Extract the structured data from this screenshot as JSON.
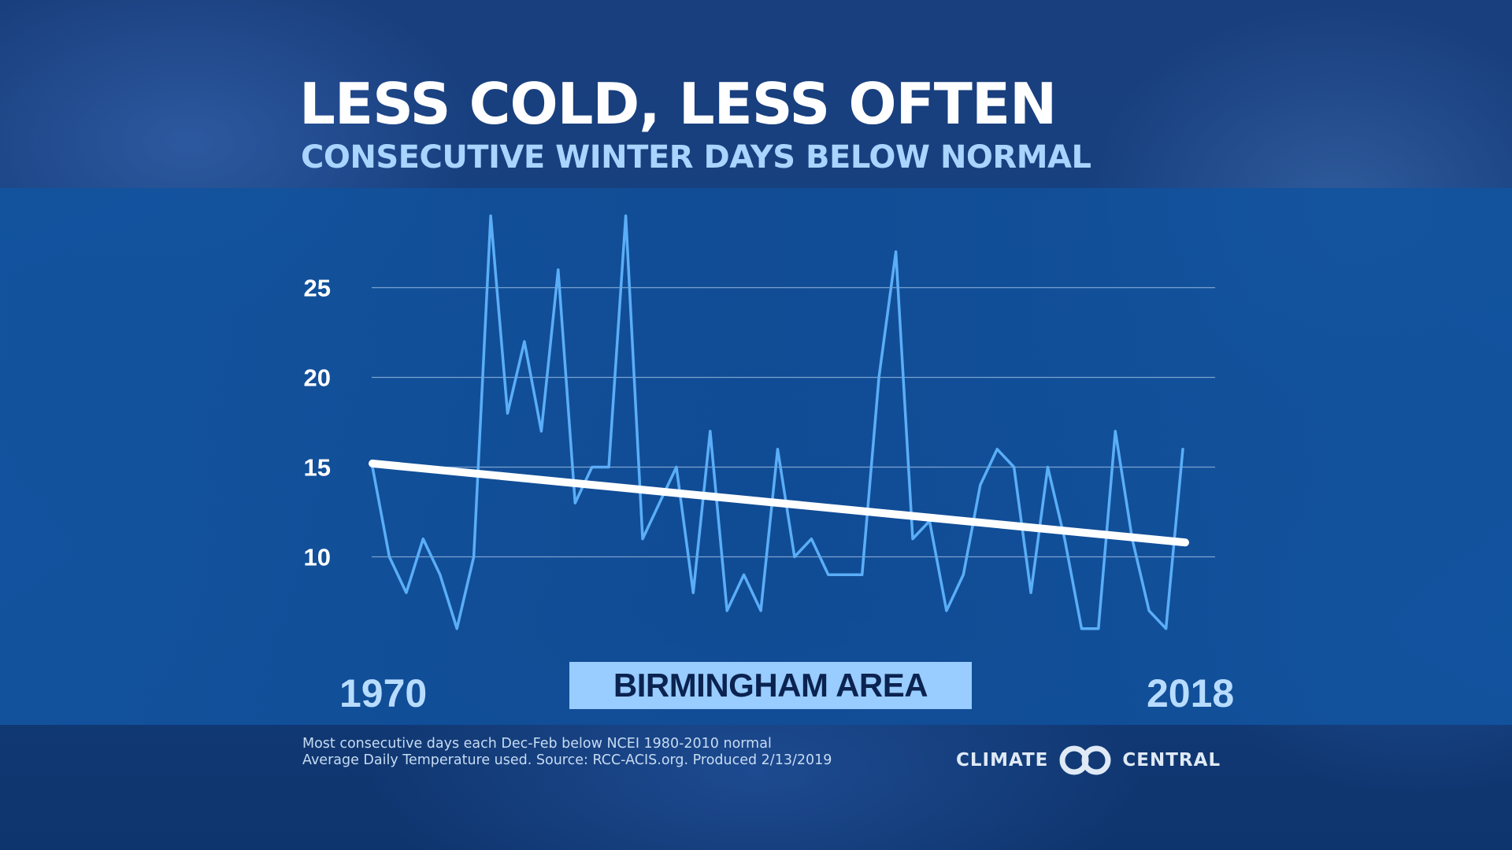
{
  "title": "LESS COLD, LESS OFTEN",
  "subtitle": "CONSECUTIVE WINTER DAYS BELOW NORMAL",
  "location_label": "BIRMINGHAM AREA",
  "year_start_label": "1970",
  "year_end_label": "2018",
  "footnote_line1": "Most consecutive days each Dec-Feb below NCEI 1980-2010 normal",
  "footnote_line2": "Average Daily Temperature used. Source: RCC-ACIS.org. Produced 2/13/2019",
  "logo": {
    "left_text": "CLIMATE",
    "right_text": "CENTRAL",
    "icon": "climate-central-logo-icon"
  },
  "colors": {
    "series_line": "#5aaef7",
    "trend_line": "#ffffff",
    "gridline": "#9fc0e3",
    "location_box": "#99ccff"
  },
  "chart_data": {
    "type": "line",
    "title": "CONSECUTIVE WINTER DAYS BELOW NORMAL",
    "xlabel": "",
    "ylabel": "",
    "x": [
      1970,
      1971,
      1972,
      1973,
      1974,
      1975,
      1976,
      1977,
      1978,
      1979,
      1980,
      1981,
      1982,
      1983,
      1984,
      1985,
      1986,
      1987,
      1988,
      1989,
      1990,
      1991,
      1992,
      1993,
      1994,
      1995,
      1996,
      1997,
      1998,
      1999,
      2000,
      2001,
      2002,
      2003,
      2004,
      2005,
      2006,
      2007,
      2008,
      2009,
      2010,
      2011,
      2012,
      2013,
      2014,
      2015,
      2016,
      2017,
      2018
    ],
    "series": [
      {
        "values": [
          15,
          10,
          8,
          11,
          9,
          6,
          10,
          29,
          18,
          22,
          17,
          26,
          13,
          15,
          15,
          29,
          11,
          13,
          15,
          8,
          17,
          7,
          9,
          7,
          16,
          10,
          11,
          9,
          9,
          9,
          20,
          27,
          11,
          12,
          7,
          9,
          14,
          16,
          15,
          8,
          15,
          11,
          6,
          6,
          17,
          11,
          7,
          6,
          16
        ]
      }
    ],
    "trend": {
      "start": 15.2,
      "end": 10.8
    },
    "yticks": [
      10,
      15,
      20,
      25
    ],
    "ylim": [
      6,
      29
    ],
    "xlim": [
      1970,
      2018
    ],
    "grid": true,
    "legend": "none"
  }
}
